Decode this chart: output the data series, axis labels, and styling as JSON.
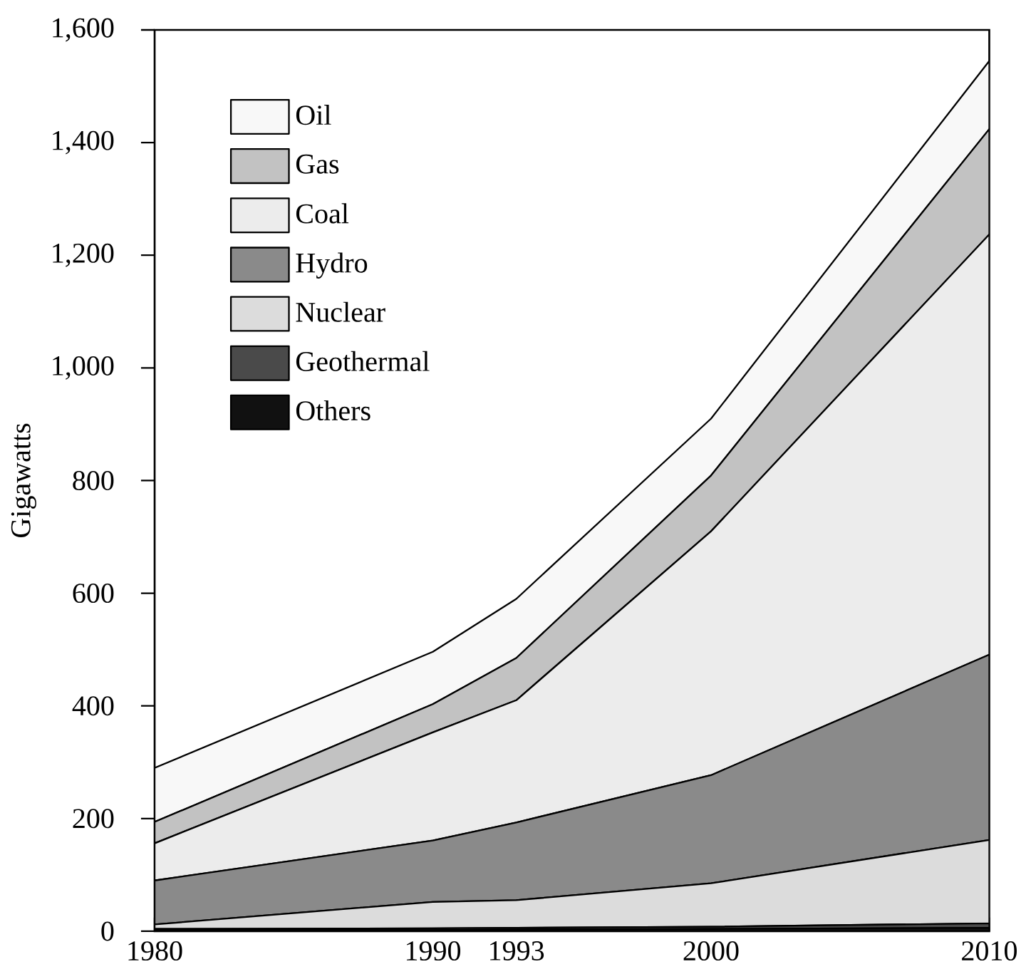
{
  "chart_data": {
    "type": "area",
    "stacked": true,
    "ylabel": "Gigawatts",
    "x": [
      1980,
      1990,
      1993,
      2000,
      2010
    ],
    "series": [
      {
        "name": "Others",
        "color": "#111111",
        "values": [
          2,
          2,
          3,
          4,
          6
        ]
      },
      {
        "name": "Geothermal",
        "color": "#4a4a4a",
        "values": [
          2,
          3,
          3,
          4,
          8
        ]
      },
      {
        "name": "Nuclear",
        "color": "#dcdcdc",
        "values": [
          8,
          47,
          49,
          77,
          148
        ]
      },
      {
        "name": "Hydro",
        "color": "#8a8a8a",
        "values": [
          78,
          109,
          138,
          192,
          329
        ]
      },
      {
        "name": "Coal",
        "color": "#ececec",
        "values": [
          66,
          192,
          217,
          433,
          746
        ]
      },
      {
        "name": "Gas",
        "color": "#c2c2c2",
        "values": [
          38,
          50,
          75,
          99,
          187
        ]
      },
      {
        "name": "Oil",
        "color": "#f8f8f8",
        "values": [
          96,
          93,
          105,
          101,
          121
        ]
      }
    ],
    "xlim": [
      1980,
      2010
    ],
    "ylim": [
      0,
      1600
    ],
    "xticks": [
      1980,
      1990,
      1993,
      2000,
      2010
    ],
    "yticks": [
      0,
      200,
      400,
      600,
      800,
      {
        "value": 1000,
        "label": "1,000"
      },
      {
        "value": 1200,
        "label": "1,200"
      },
      {
        "value": 1400,
        "label": "1,400"
      },
      {
        "value": 1600,
        "label": "1,600"
      }
    ],
    "legend": "top left",
    "grid": false
  }
}
